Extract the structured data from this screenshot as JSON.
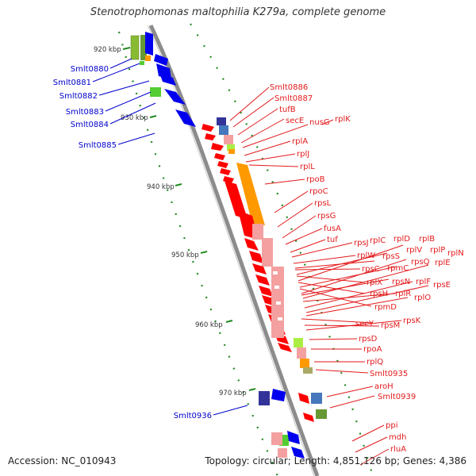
{
  "title": "Stenotrophomonas maltophilia K279a, complete genome",
  "footer": {
    "accession": "Accession: NC_010943",
    "summary": "Topology: circular; Length: 4,851,126 bp; Genes: 4,386"
  },
  "colors": {
    "backbone": "#8c8c8c",
    "label_left": "#0000cc",
    "label_right": "#e31a1c",
    "tick": "#228b22",
    "gene_red": "#ff0000",
    "gene_blue": "#0000ee",
    "gene_orange": "#ff9900",
    "gene_pink": "#f4a0a0",
    "gene_green": "#55cc33",
    "gene_navy": "#333399",
    "gene_lime": "#aaee44",
    "gene_olive": "#669933",
    "gene_steel": "#4477bb"
  },
  "kbp_labels": [
    "920 kbp",
    "930 kbp",
    "940 kbp",
    "950 kbp",
    "960 kbp",
    "970 kbp"
  ],
  "left_labels": [
    "Smlt0880",
    "Smlt0881",
    "Smlt0882",
    "Smlt0883",
    "Smlt0884",
    "Smlt0885",
    "Smlt0936"
  ],
  "right_labels": [
    "Smlt0886",
    "Smlt0887",
    "tufB",
    "secE",
    "nusG",
    "rplK",
    "rplA",
    "rplJ",
    "rplL",
    "rpoB",
    "rpoC",
    "rpsL",
    "rpsG",
    "fusA",
    "tuf",
    "rpsJ",
    "rplC",
    "rplD",
    "rplB",
    "rplW",
    "rpsS",
    "rplV",
    "rplP",
    "rplN",
    "rpsC",
    "rpmC",
    "rpsQ",
    "rplE",
    "rplX",
    "rpsN",
    "rplF",
    "rpsE",
    "rpsH",
    "rplR",
    "rplO",
    "rpmD",
    "secY",
    "rpsM",
    "rpsK",
    "rpsD",
    "rpoA",
    "rplQ",
    "Smlt0935",
    "aroH",
    "Smlt0939",
    "ppi",
    "mdh",
    "rluA"
  ]
}
